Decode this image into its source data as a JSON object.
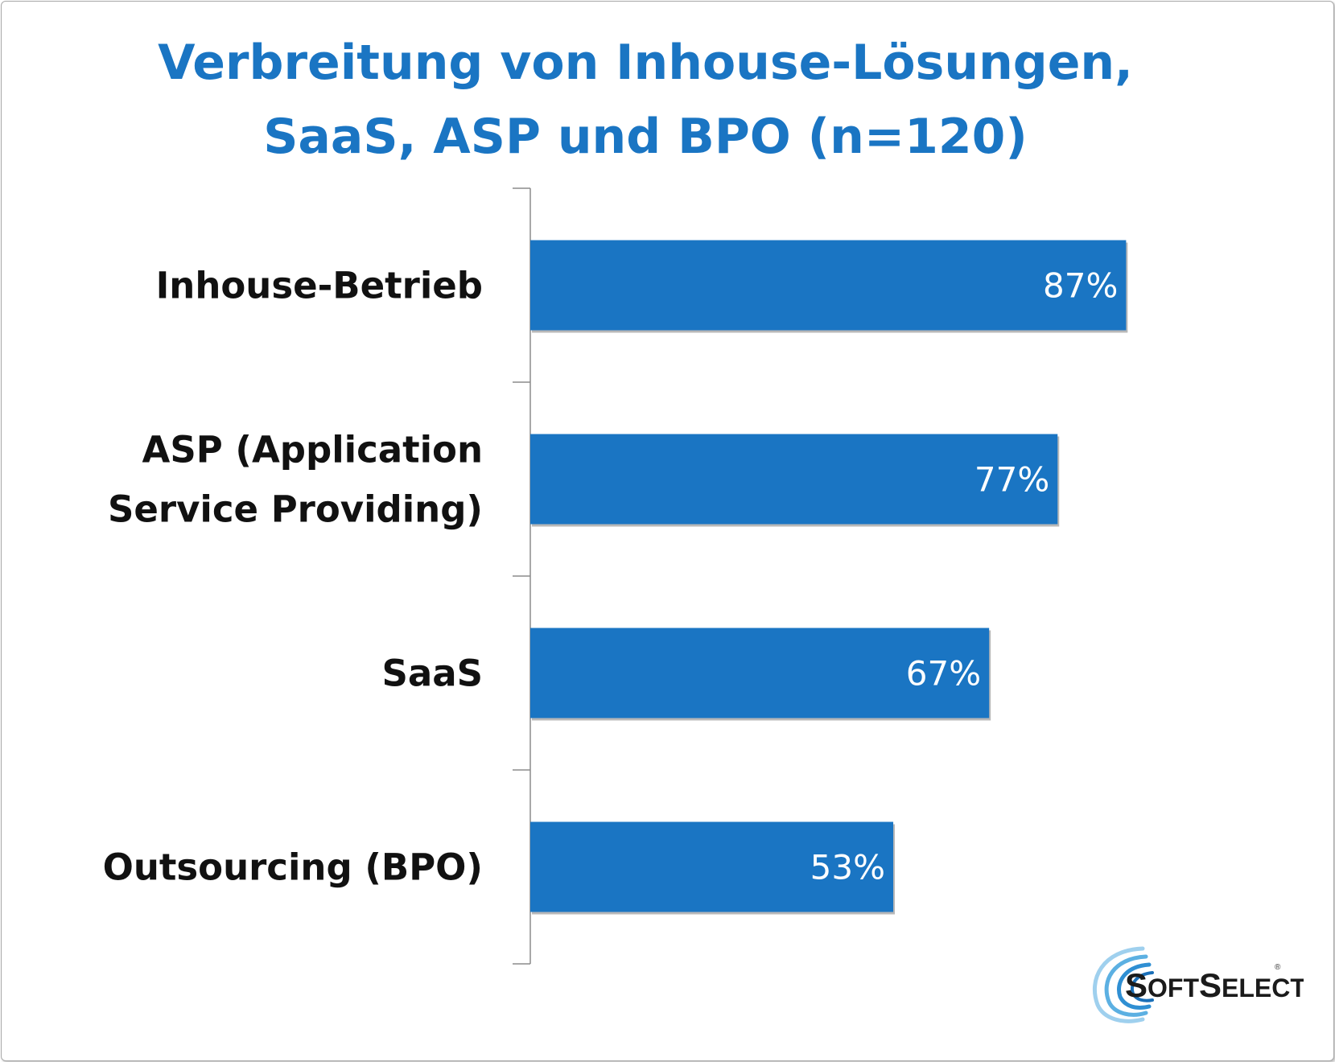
{
  "chart_data": {
    "type": "bar",
    "orientation": "horizontal",
    "title": [
      "Verbreitung von Inhouse-Lösungen,",
      "SaaS, ASP und BPO (n=120)"
    ],
    "categories": [
      [
        "Inhouse-Betrieb"
      ],
      [
        "ASP (Application",
        "Service Providing)"
      ],
      [
        "SaaS"
      ],
      [
        "Outsourcing (BPO)"
      ]
    ],
    "values": [
      87,
      77,
      67,
      53
    ],
    "value_labels": [
      "87%",
      "77%",
      "67%",
      "53%"
    ],
    "unit": "%",
    "xlim": [
      0,
      100
    ],
    "bar_color": "#1a75c3",
    "title_color": "#1a75c3",
    "grid": false,
    "legend": "none"
  },
  "logo": {
    "text_first": "S",
    "text_rest1": "OFT",
    "text_second": "S",
    "text_rest2": "ELECT",
    "registered": "®"
  }
}
